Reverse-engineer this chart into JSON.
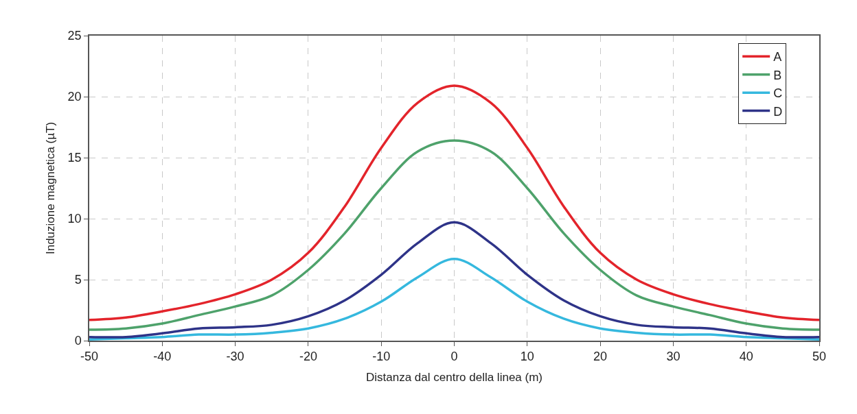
{
  "chart_data": {
    "type": "line",
    "xlabel": "Distanza dal centro della linea (m)",
    "ylabel": "Induzione magnetica (µT)",
    "x": [
      -50,
      -45,
      -40,
      -35,
      -30,
      -25,
      -20,
      -15,
      -10,
      -5,
      0,
      5,
      10,
      15,
      20,
      25,
      30,
      35,
      40,
      45,
      50
    ],
    "series": [
      {
        "name": "A",
        "color": "#e3242b",
        "values": [
          1.7,
          1.9,
          2.4,
          3.0,
          3.8,
          5.0,
          7.2,
          11.0,
          15.8,
          19.5,
          20.9,
          19.5,
          15.8,
          11.0,
          7.2,
          5.0,
          3.8,
          3.0,
          2.4,
          1.9,
          1.7
        ]
      },
      {
        "name": "B",
        "color": "#4ea26b",
        "values": [
          0.9,
          1.0,
          1.4,
          2.1,
          2.8,
          3.7,
          5.8,
          8.8,
          12.5,
          15.5,
          16.4,
          15.5,
          12.5,
          8.8,
          5.8,
          3.7,
          2.8,
          2.1,
          1.4,
          1.0,
          0.9
        ]
      },
      {
        "name": "C",
        "color": "#35b8de",
        "values": [
          0.1,
          0.2,
          0.3,
          0.5,
          0.5,
          0.65,
          1.0,
          1.8,
          3.2,
          5.2,
          6.7,
          5.2,
          3.2,
          1.8,
          1.0,
          0.65,
          0.5,
          0.5,
          0.3,
          0.2,
          0.1
        ]
      },
      {
        "name": "D",
        "color": "#2e3388",
        "values": [
          0.3,
          0.3,
          0.6,
          1.0,
          1.1,
          1.3,
          2.0,
          3.3,
          5.4,
          8.0,
          9.7,
          8.0,
          5.4,
          3.3,
          2.0,
          1.3,
          1.1,
          1.0,
          0.6,
          0.3,
          0.3
        ]
      }
    ],
    "xlim": [
      -50,
      50
    ],
    "xticks": [
      -50,
      -40,
      -30,
      -20,
      -10,
      0,
      10,
      20,
      30,
      40,
      50
    ],
    "ylim": [
      0,
      25
    ],
    "yticks": [
      0,
      5,
      10,
      15,
      20,
      25
    ],
    "grid": true,
    "legend": "top right",
    "marker": "none",
    "line_style": "solid"
  }
}
